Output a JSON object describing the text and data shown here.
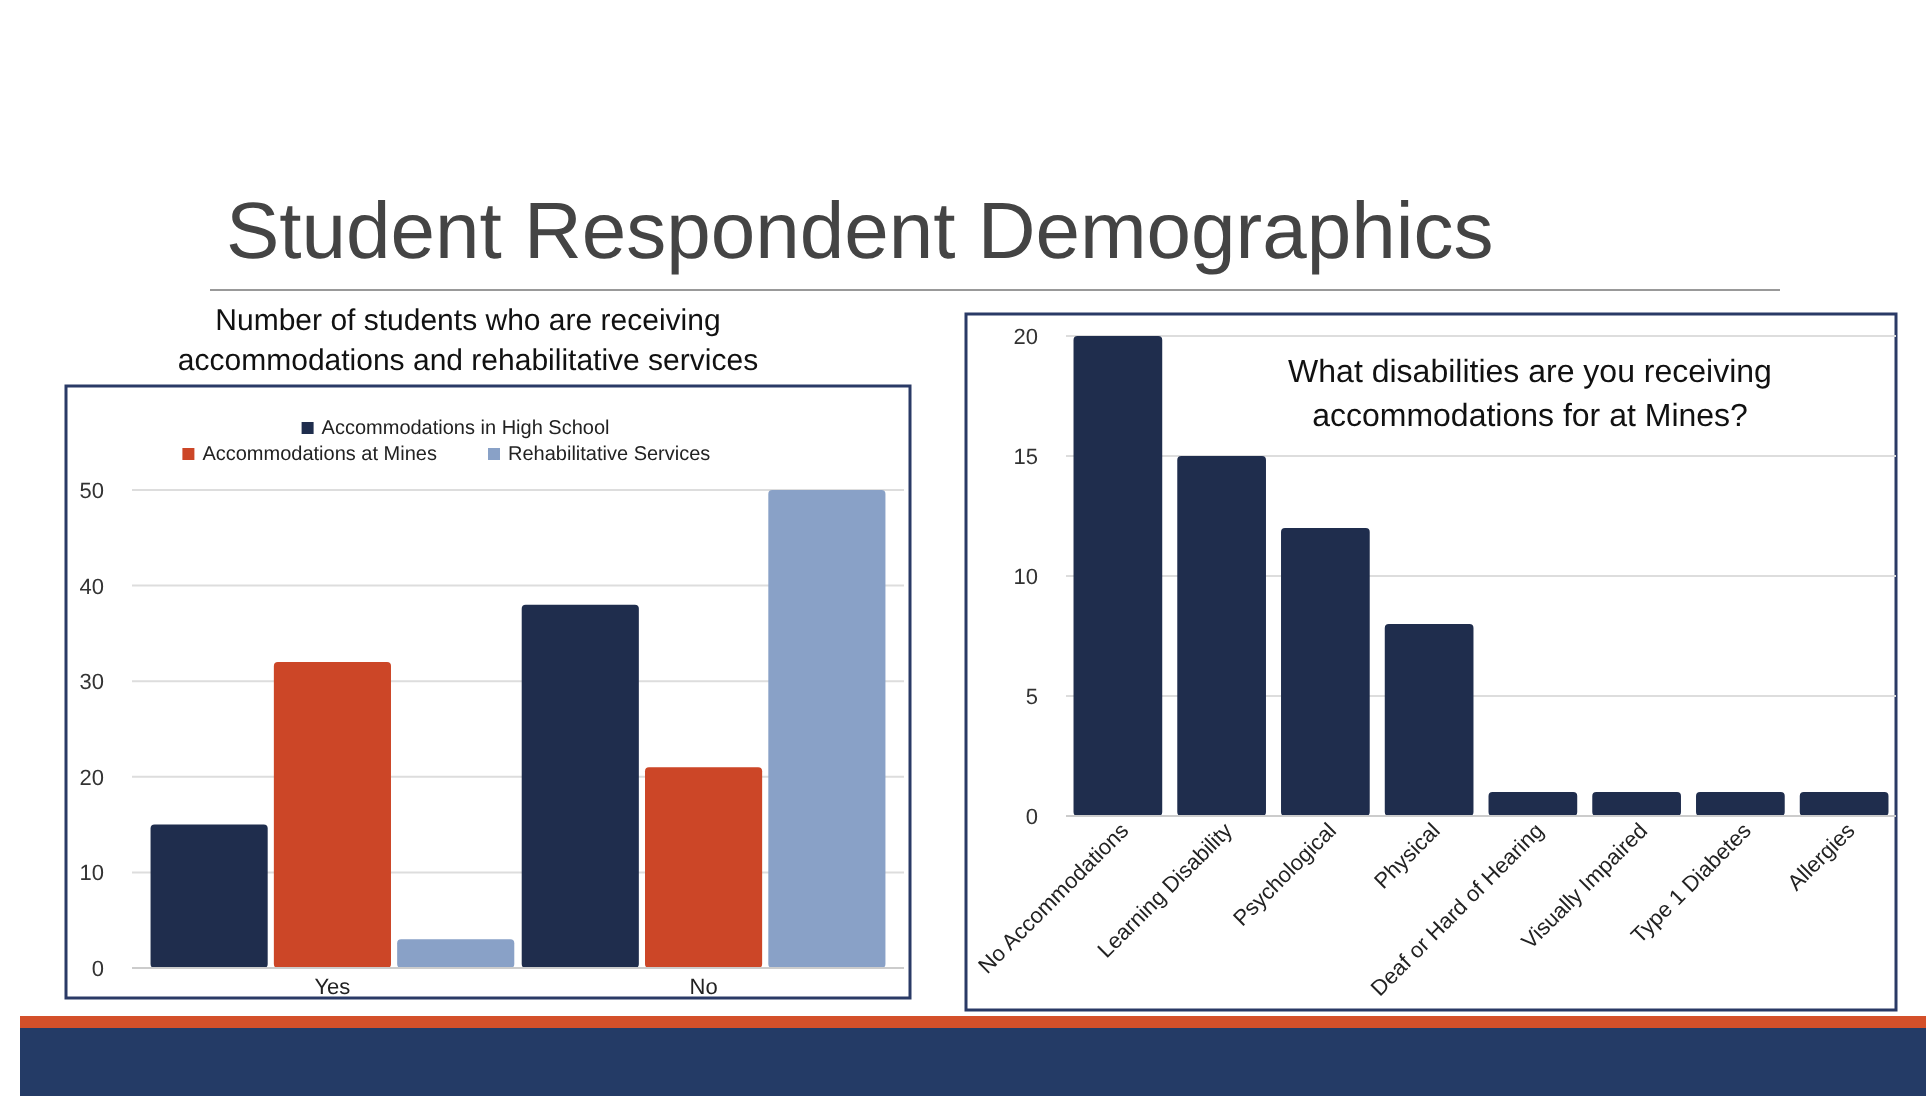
{
  "chart_data": [
    {
      "type": "other",
      "title": "Student Respondent Demographics"
    },
    {
      "type": "bar",
      "title": "Number of students who are receiving accommodations and rehabilitative services",
      "categories": [
        "Yes",
        "No"
      ],
      "series": [
        {
          "name": "Accommodations in High School",
          "color": "#1f2d4d",
          "values": [
            15,
            38
          ]
        },
        {
          "name": "Accommodations at Mines",
          "color": "#cc4627",
          "values": [
            32,
            21
          ]
        },
        {
          "name": "Rehabilitative Services",
          "color": "#89a1c7",
          "values": [
            3,
            50
          ]
        }
      ],
      "ylim": [
        0,
        50
      ],
      "yticks": [
        0,
        10,
        20,
        30,
        40,
        50
      ],
      "grid": "y",
      "legend": "top"
    },
    {
      "type": "bar",
      "title": "What disabilities are you receiving accommodations for at Mines?",
      "categories": [
        "No Accommodations",
        "Learning Disability",
        "Psychological",
        "Physical",
        "Deaf or Hard of Hearing",
        "Visually Impaired",
        "Type 1 Diabetes",
        "Allergies"
      ],
      "values": [
        20,
        15,
        12,
        8,
        1,
        1,
        1,
        1
      ],
      "color": "#1f2d4d",
      "ylim": [
        0,
        20
      ],
      "yticks": [
        0,
        5,
        10,
        15,
        20
      ],
      "grid": "y"
    }
  ]
}
